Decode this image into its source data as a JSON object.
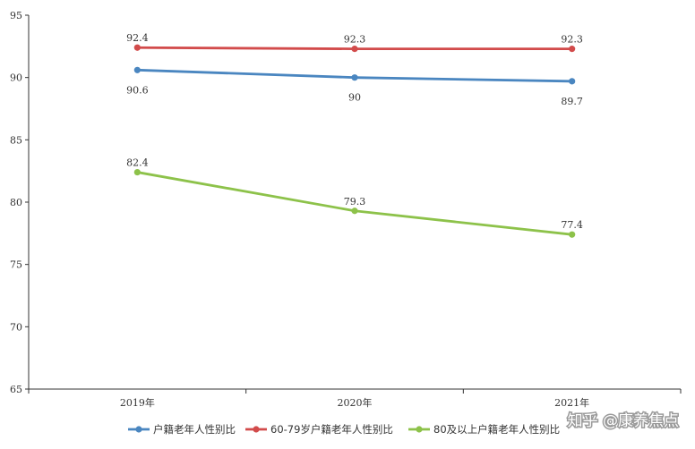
{
  "chart_data": {
    "type": "line",
    "categories": [
      "2019年",
      "2020年",
      "2021年"
    ],
    "ylim": [
      65,
      95
    ],
    "yticks": [
      65,
      70,
      75,
      80,
      85,
      90,
      95
    ],
    "grid": false,
    "legend_position": "bottom",
    "series": [
      {
        "name": "户籍老年人性别比",
        "values": [
          90.6,
          90,
          89.7
        ],
        "labels": [
          "90.6",
          "90",
          "89.7"
        ],
        "color": "#4a86c0",
        "label_side": "below"
      },
      {
        "name": "60-79岁户籍老年人性别比",
        "values": [
          92.4,
          92.3,
          92.3
        ],
        "labels": [
          "92.4",
          "92.3",
          "92.3"
        ],
        "color": "#d24b4b",
        "label_side": "above"
      },
      {
        "name": "80及以上户籍老年人性别比",
        "values": [
          82.4,
          79.3,
          77.4
        ],
        "labels": [
          "82.4",
          "79.3",
          "77.4"
        ],
        "color": "#8dc24a",
        "label_side": "above"
      }
    ]
  },
  "watermark": {
    "text": "知乎 @康养焦点"
  }
}
